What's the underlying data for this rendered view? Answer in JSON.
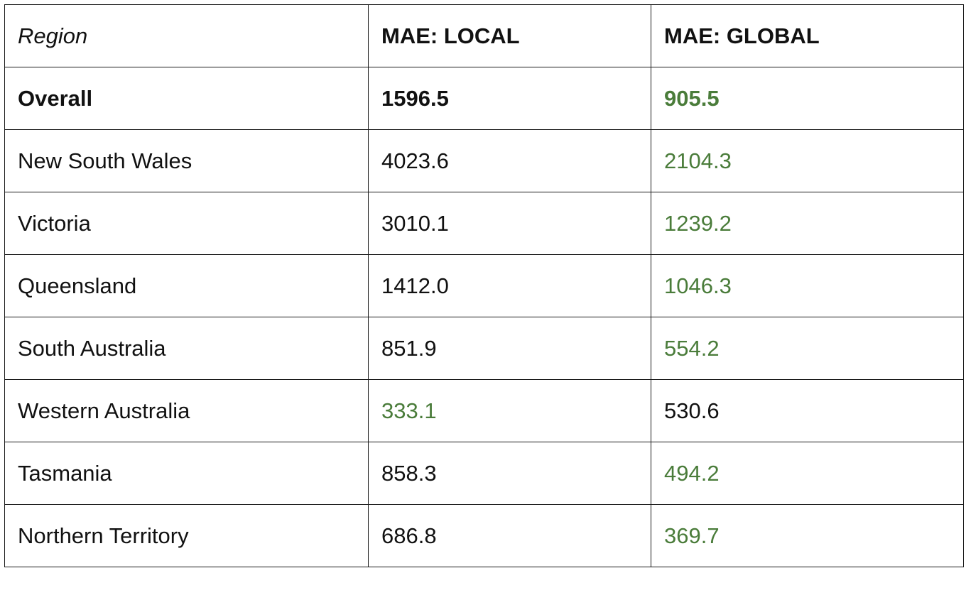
{
  "table": {
    "headers": [
      "Region",
      "MAE: LOCAL",
      "MAE: GLOBAL"
    ],
    "highlight_color": "#4a7c3a",
    "rows": [
      {
        "region": "Overall",
        "local": "1596.5",
        "global": "905.5",
        "bold": true,
        "best": "global"
      },
      {
        "region": "New South Wales",
        "local": "4023.6",
        "global": "2104.3",
        "bold": false,
        "best": "global"
      },
      {
        "region": "Victoria",
        "local": "3010.1",
        "global": "1239.2",
        "bold": false,
        "best": "global"
      },
      {
        "region": "Queensland",
        "local": "1412.0",
        "global": "1046.3",
        "bold": false,
        "best": "global"
      },
      {
        "region": "South Australia",
        "local": "851.9",
        "global": "554.2",
        "bold": false,
        "best": "global"
      },
      {
        "region": "Western Australia",
        "local": "333.1",
        "global": "530.6",
        "bold": false,
        "best": "local"
      },
      {
        "region": "Tasmania",
        "local": "858.3",
        "global": "494.2",
        "bold": false,
        "best": "global"
      },
      {
        "region": "Northern Territory",
        "local": "686.8",
        "global": "369.7",
        "bold": false,
        "best": "global"
      }
    ]
  }
}
